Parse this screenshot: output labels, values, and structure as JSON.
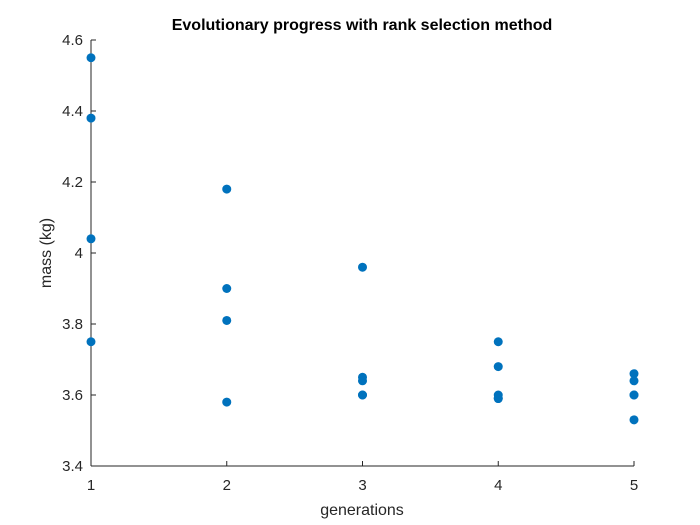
{
  "chart_data": {
    "type": "scatter",
    "title": "Evolutionary progress with rank selection method",
    "xlabel": "generations",
    "ylabel": "mass (kg)",
    "xlim": [
      1,
      5
    ],
    "ylim": [
      3.4,
      4.6
    ],
    "xticks": [
      1,
      2,
      3,
      4,
      5
    ],
    "xtick_labels": [
      "1",
      "2",
      "3",
      "4",
      "5"
    ],
    "yticks": [
      3.4,
      3.6,
      3.8,
      4.0,
      4.2,
      4.4,
      4.6
    ],
    "ytick_labels": [
      "3.4",
      "3.6",
      "3.8",
      "4",
      "4.2",
      "4.4",
      "4.6"
    ],
    "grid": false,
    "marker_color": "#0072BD",
    "axis_color": "#262626",
    "series": [
      {
        "x": [
          1,
          1,
          1,
          1,
          2,
          2,
          2,
          2,
          3,
          3,
          3,
          3,
          3,
          4,
          4,
          4,
          4,
          4,
          5,
          5,
          5,
          5,
          5
        ],
        "y": [
          4.55,
          4.38,
          4.04,
          3.75,
          4.18,
          3.9,
          3.81,
          3.58,
          3.96,
          3.65,
          3.64,
          3.6,
          3.6,
          3.75,
          3.68,
          3.6,
          3.59,
          3.59,
          3.66,
          3.64,
          3.6,
          3.6,
          3.53
        ]
      }
    ]
  }
}
